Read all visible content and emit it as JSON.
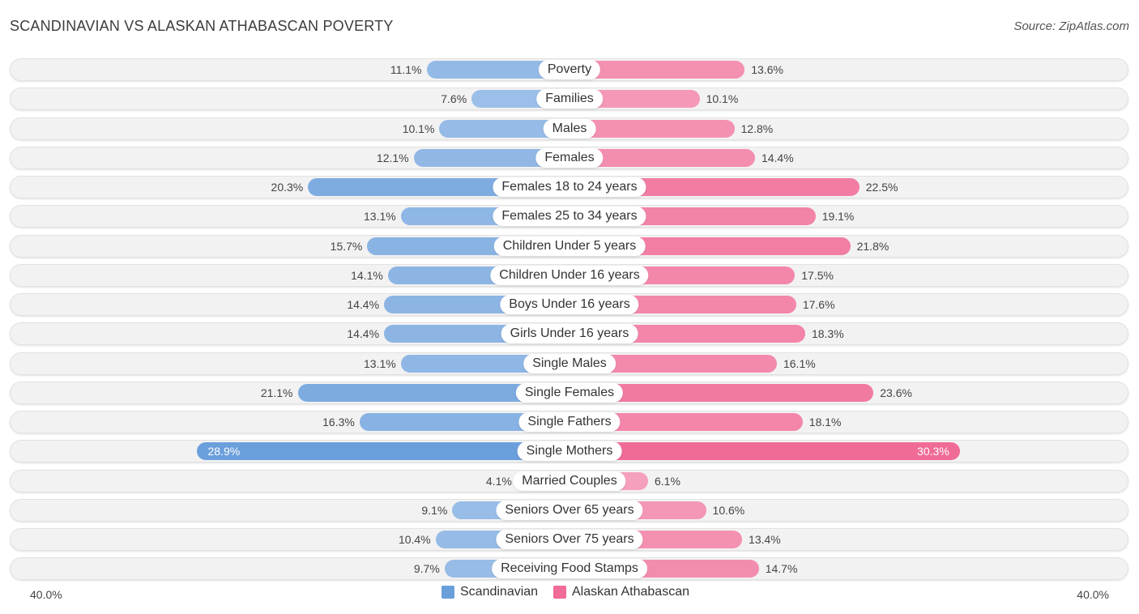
{
  "title": "SCANDINAVIAN VS ALASKAN ATHABASCAN POVERTY",
  "source": "Source: ZipAtlas.com",
  "colors": {
    "scandinavian": "#6a9fdc",
    "alaskan_athabascan": "#f06b96"
  },
  "chart_data": {
    "type": "bar",
    "orientation": "horizontal-diverging",
    "title": "SCANDINAVIAN VS ALASKAN ATHABASCAN POVERTY",
    "xlim": [
      0,
      40
    ],
    "axis_min_label": "40.0%",
    "axis_max_label": "40.0%",
    "legend_position": "bottom-center",
    "categories": [
      "Poverty",
      "Families",
      "Males",
      "Females",
      "Females 18 to 24 years",
      "Females 25 to 34 years",
      "Children Under 5 years",
      "Children Under 16 years",
      "Boys Under 16 years",
      "Girls Under 16 years",
      "Single Males",
      "Single Females",
      "Single Fathers",
      "Single Mothers",
      "Married Couples",
      "Seniors Over 65 years",
      "Seniors Over 75 years",
      "Receiving Food Stamps"
    ],
    "series": [
      {
        "name": "Scandinavian",
        "values": [
          11.1,
          7.6,
          10.1,
          12.1,
          20.3,
          13.1,
          15.7,
          14.1,
          14.4,
          14.4,
          13.1,
          21.1,
          16.3,
          28.9,
          4.1,
          9.1,
          10.4,
          9.7
        ],
        "labels": [
          "11.1%",
          "7.6%",
          "10.1%",
          "12.1%",
          "20.3%",
          "13.1%",
          "15.7%",
          "14.1%",
          "14.4%",
          "14.4%",
          "13.1%",
          "21.1%",
          "16.3%",
          "28.9%",
          "4.1%",
          "9.1%",
          "10.4%",
          "9.7%"
        ]
      },
      {
        "name": "Alaskan Athabascan",
        "values": [
          13.6,
          10.1,
          12.8,
          14.4,
          22.5,
          19.1,
          21.8,
          17.5,
          17.6,
          18.3,
          16.1,
          23.6,
          18.1,
          30.3,
          6.1,
          10.6,
          13.4,
          14.7
        ],
        "labels": [
          "13.6%",
          "10.1%",
          "12.8%",
          "14.4%",
          "22.5%",
          "19.1%",
          "21.8%",
          "17.5%",
          "17.6%",
          "18.3%",
          "16.1%",
          "23.6%",
          "18.1%",
          "30.3%",
          "6.1%",
          "10.6%",
          "13.4%",
          "14.7%"
        ]
      }
    ]
  }
}
